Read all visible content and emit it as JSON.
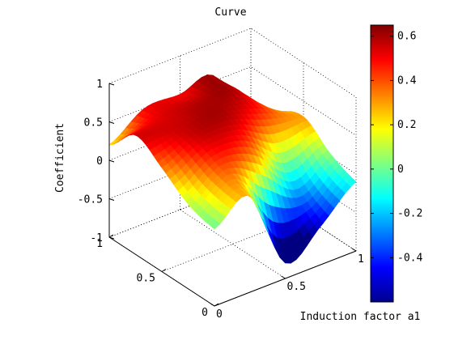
{
  "chart_data": {
    "type": "surface",
    "title": "Curve",
    "xlabel": "Induction factor a1",
    "ylabel": "",
    "zlabel": "Coefficient",
    "x_range": [
      0,
      1
    ],
    "y_range": [
      0,
      1
    ],
    "zlim": [
      -1,
      1
    ],
    "x_ticks": [
      "0",
      "0.5",
      "1"
    ],
    "y_ticks": [
      "0",
      "0.5",
      "1"
    ],
    "z_ticks": [
      "-1",
      "-0.5",
      "0",
      "0.5",
      "1"
    ],
    "grid": true,
    "colormap": "jet",
    "colorbar": {
      "range": [
        -0.6,
        0.65
      ],
      "ticks": [
        0.6,
        0.4,
        0.2,
        0,
        -0.2,
        -0.4
      ],
      "tick_labels": [
        "0.6",
        "0.4",
        "0.2",
        "0",
        "-0.2",
        "-0.4"
      ]
    },
    "grid_x": [
      0,
      0.25,
      0.5,
      0.75,
      1
    ],
    "grid_y": [
      0,
      0.25,
      0.5,
      0.75,
      1
    ],
    "z": [
      [
        0.0,
        0.1,
        0.35,
        0.55,
        0.2
      ],
      [
        0.25,
        0.4,
        0.55,
        0.55,
        0.5
      ],
      [
        -0.8,
        0.2,
        0.55,
        0.6,
        0.5
      ],
      [
        -0.5,
        -0.2,
        0.35,
        0.55,
        0.55
      ],
      [
        -0.1,
        0.05,
        0.3,
        0.1,
        -0.55
      ]
    ]
  }
}
